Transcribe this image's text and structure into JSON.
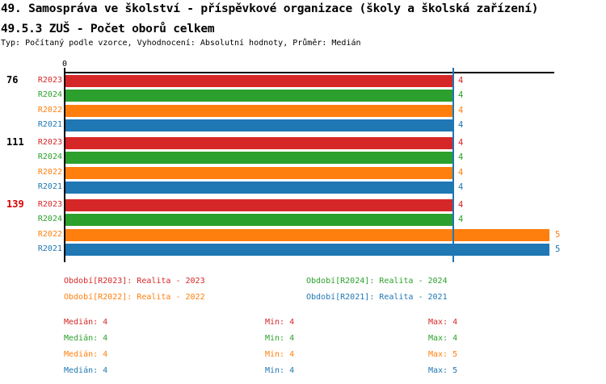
{
  "header": {
    "title": "49. Samospráva ve školství - příspěvkové organizace (školy a školská zařízení)",
    "subtitle": "49.5.3 ZUŠ - Počet oborů celkem",
    "meta": "Typ: Počítaný podle vzorce, Vyhodnocení: Absolutní hodnoty, Průměr: Medián"
  },
  "chart_data": {
    "type": "bar",
    "orientation": "horizontal",
    "title": "49.5.3 ZUŠ - Počet oborů celkem",
    "categories": [
      "76",
      "111",
      "139"
    ],
    "category_colors": [
      "#000000",
      "#000000",
      "#dd0000"
    ],
    "series": [
      {
        "name": "R2023",
        "color": "#d62728",
        "values": [
          4,
          4,
          4
        ]
      },
      {
        "name": "R2024",
        "color": "#2ca02c",
        "values": [
          4,
          4,
          4
        ]
      },
      {
        "name": "R2022",
        "color": "#ff7f0e",
        "values": [
          4,
          4,
          5
        ]
      },
      {
        "name": "R2021",
        "color": "#1f77b4",
        "values": [
          4,
          4,
          5
        ]
      }
    ],
    "xlim": [
      0,
      5.05
    ],
    "x_ticks": [
      "0"
    ],
    "value_labels": true,
    "median_line": {
      "value": 4,
      "color": "#1f77b4"
    },
    "grid": false,
    "legend_position": "bottom"
  },
  "legend": {
    "items": [
      {
        "text": "Období[R2023]: Realita - 2023",
        "color": "#d62728"
      },
      {
        "text": "Období[R2024]: Realita - 2024",
        "color": "#2ca02c"
      },
      {
        "text": "Období[R2022]: Realita - 2022",
        "color": "#ff7f0e"
      },
      {
        "text": "Období[R2021]: Realita - 2021",
        "color": "#1f77b4"
      }
    ]
  },
  "stats": {
    "label_median": "Medián",
    "label_min": "Min",
    "label_max": "Max",
    "rows": [
      {
        "color": "#d62728",
        "median": 4,
        "min": 4,
        "max": 4
      },
      {
        "color": "#2ca02c",
        "median": 4,
        "min": 4,
        "max": 4
      },
      {
        "color": "#ff7f0e",
        "median": 4,
        "min": 4,
        "max": 5
      },
      {
        "color": "#1f77b4",
        "median": 4,
        "min": 4,
        "max": 5
      }
    ]
  }
}
